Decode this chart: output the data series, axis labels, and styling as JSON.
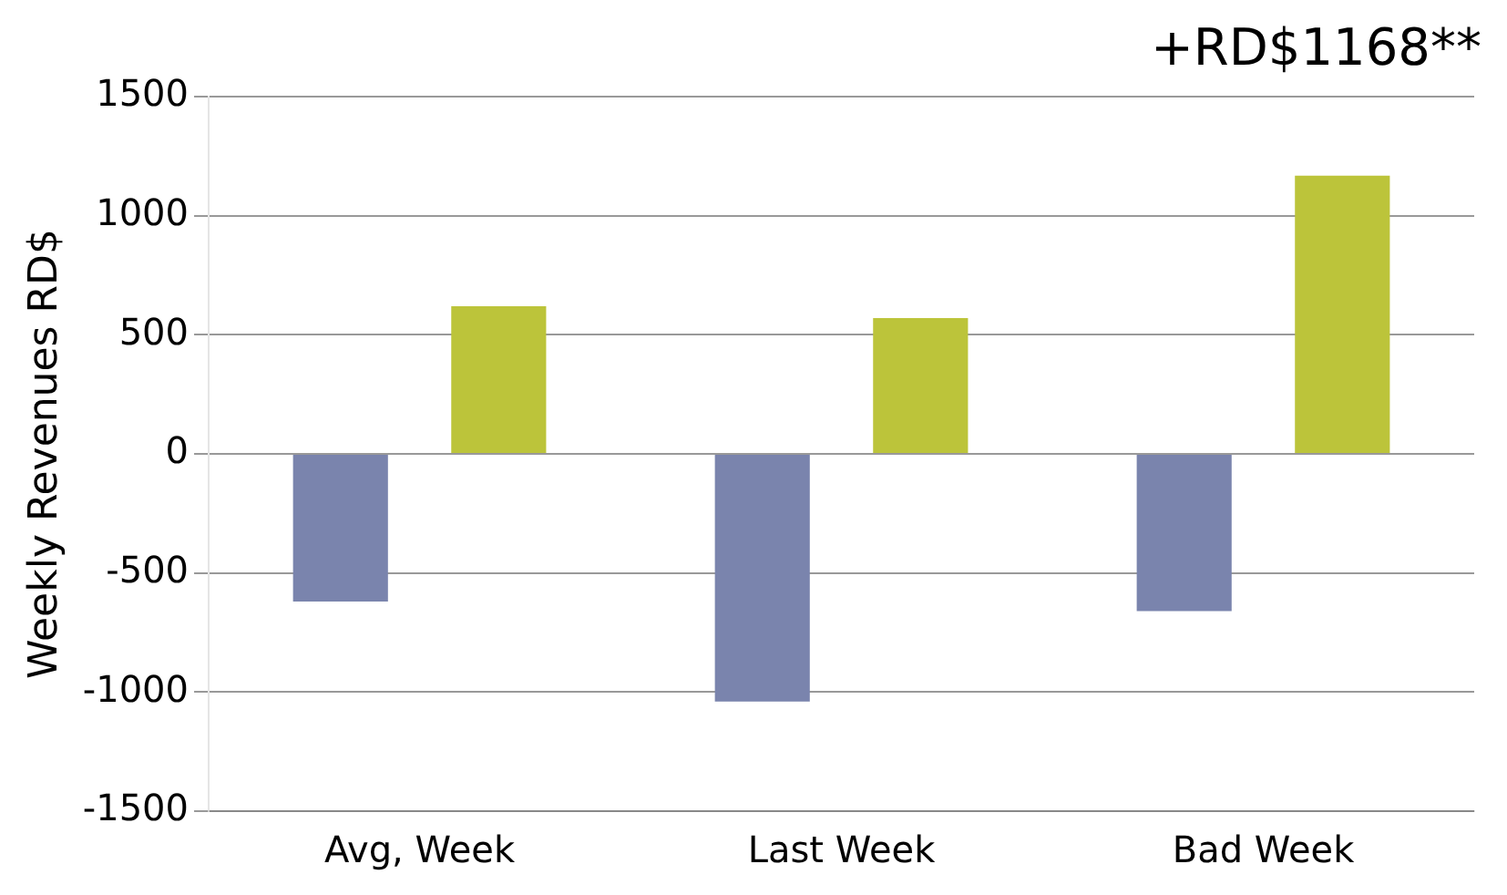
{
  "chart_data": {
    "type": "bar",
    "ylabel": "Weekly Revenues RD$",
    "categories": [
      "Avg, Week",
      "Last Week",
      "Bad Week"
    ],
    "series": [
      {
        "color": "#7a84ad",
        "values": [
          -620,
          -1040,
          -660
        ]
      },
      {
        "color": "#bcc43a",
        "values": [
          620,
          570,
          1168
        ]
      }
    ],
    "ylim": [
      -1500,
      1500
    ],
    "yticks": [
      -1500,
      -1000,
      -500,
      0,
      500,
      1000,
      1500
    ],
    "grid": "y",
    "legend": false,
    "annotations": [
      "+RD$1168**"
    ]
  }
}
